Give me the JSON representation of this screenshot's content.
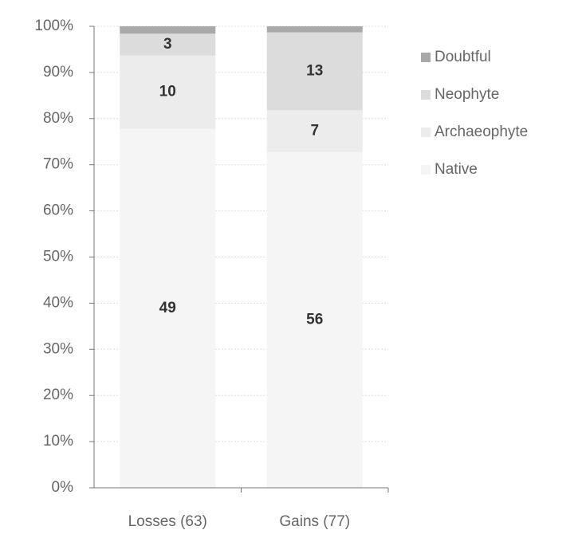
{
  "chart_data": {
    "type": "bar",
    "stacking": "percent",
    "categories": [
      "Losses (63)",
      "Gains (77)"
    ],
    "series": [
      {
        "name": "Native",
        "color": "#f5f5f5",
        "values": [
          49,
          56
        ],
        "labels": true
      },
      {
        "name": "Archaeophyte",
        "color": "#ececec",
        "values": [
          10,
          7
        ],
        "labels": true
      },
      {
        "name": "Neophyte",
        "color": "#dcdcdc",
        "values": [
          3,
          13
        ],
        "labels": true
      },
      {
        "name": "Doubtful",
        "color": "#a9a9a9",
        "values": [
          1,
          1
        ],
        "labels": false
      }
    ],
    "ylim": [
      0,
      100
    ],
    "yticks": [
      {
        "value": 0,
        "label": "0%"
      },
      {
        "value": 10,
        "label": "10%"
      },
      {
        "value": 20,
        "label": "20%"
      },
      {
        "value": 30,
        "label": "30%"
      },
      {
        "value": 40,
        "label": "40%"
      },
      {
        "value": 50,
        "label": "50%"
      },
      {
        "value": 60,
        "label": "60%"
      },
      {
        "value": 70,
        "label": "70%"
      },
      {
        "value": 80,
        "label": "80%"
      },
      {
        "value": 90,
        "label": "90%"
      },
      {
        "value": 100,
        "label": "100%"
      }
    ],
    "grid": true,
    "legend": "right"
  }
}
